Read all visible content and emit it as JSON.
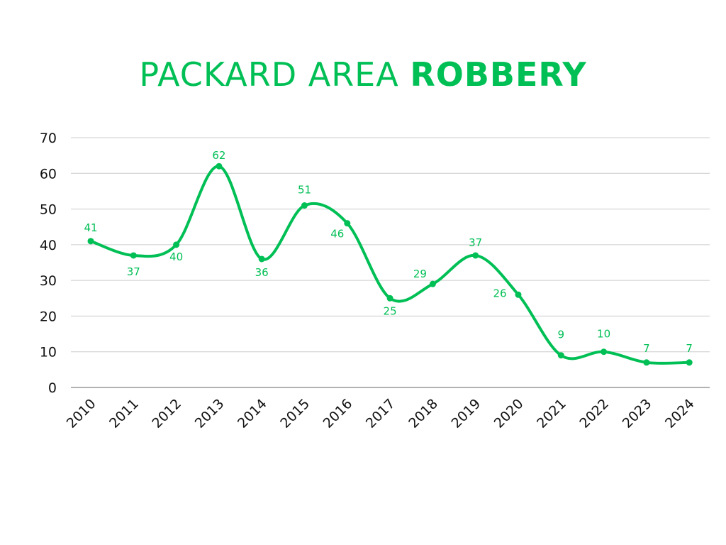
{
  "chart_data": {
    "type": "line",
    "title": "PACKARD AREA",
    "title_bold": "ROBBERY",
    "xlabel": "",
    "ylabel": "",
    "categories": [
      "2010",
      "2011",
      "2012",
      "2013",
      "2014",
      "2015",
      "2016",
      "2017",
      "2018",
      "2019",
      "2020",
      "2021",
      "2022",
      "2023",
      "2024"
    ],
    "series": [
      {
        "name": "Robbery",
        "values": [
          41,
          37,
          40,
          62,
          36,
          51,
          46,
          25,
          29,
          37,
          26,
          9,
          10,
          7,
          7
        ]
      }
    ],
    "ylim": [
      0,
      70
    ],
    "yticks": [
      0,
      10,
      20,
      30,
      40,
      50,
      60,
      70
    ],
    "grid": true,
    "smooth": true,
    "color": "#00BF55"
  }
}
